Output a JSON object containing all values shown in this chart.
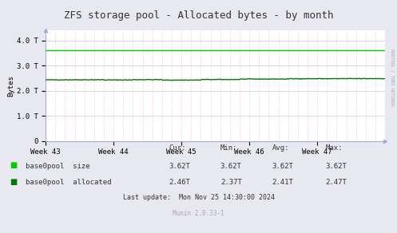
{
  "title": "ZFS storage pool - Allocated bytes - by month",
  "ylabel": "Bytes",
  "background_color": "#e8e8f0",
  "plot_bg_color": "#ffffff",
  "grid_color_major": "#cccccc",
  "grid_color_minor": "#ffaaaa",
  "line_color_size": "#00cc00",
  "line_color_alloc": "#007700",
  "ylim": [
    0,
    4400000000000.0
  ],
  "yticks": [
    0,
    1000000000000.0,
    2000000000000.0,
    3000000000000.0,
    4000000000000.0
  ],
  "ytick_labels": [
    "0",
    "1.0 T",
    "2.0 T",
    "3.0 T",
    "4.0 T"
  ],
  "xtick_labels": [
    "Week 43",
    "Week 44",
    "Week 45",
    "Week 46",
    "Week 47"
  ],
  "size_value": 3620000000000.0,
  "legend_entries": [
    "base0pool  size",
    "base0pool  allocated"
  ],
  "cur_size": "3.62T",
  "min_size": "3.62T",
  "avg_size": "3.62T",
  "max_size": "3.62T",
  "cur_alloc": "2.46T",
  "min_alloc": "2.37T",
  "avg_alloc": "2.41T",
  "max_alloc": "2.47T",
  "last_update": "Last update:  Mon Nov 25 14:30:00 2024",
  "munin_version": "Munin 2.0.33-1",
  "rrdtool_label": "RRDTOOL / TOBI OETIKER",
  "title_fontsize": 9,
  "axis_fontsize": 6.5,
  "legend_fontsize": 6.5,
  "footer_fontsize": 6
}
